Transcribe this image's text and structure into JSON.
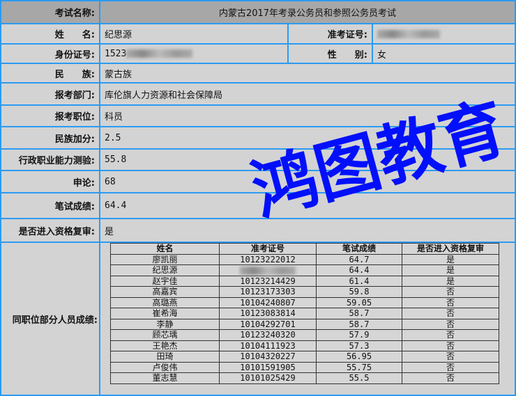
{
  "exam": {
    "label": "考试名称:",
    "value": "内蒙古2017年考录公务员和参照公务员考试"
  },
  "name": {
    "label": "姓　　名:",
    "value": "纪思源"
  },
  "ticket": {
    "label": "准考证号:"
  },
  "id": {
    "label": "身份证号:",
    "value_prefix": "1523"
  },
  "gender": {
    "label": "性　　别:",
    "value": "女"
  },
  "ethnicity": {
    "label": "民　　族:",
    "value": "蒙古族"
  },
  "department": {
    "label": "报考部门:",
    "value": "库伦旗人力资源和社会保障局"
  },
  "position": {
    "label": "报考职位:",
    "value": "科员"
  },
  "ethnic_bonus": {
    "label": "民族加分:",
    "value": "2.5"
  },
  "aptitude": {
    "label": "行政职业能力测验:",
    "value": "55.8"
  },
  "essay": {
    "label": "申论:",
    "value": "68"
  },
  "written": {
    "label": "笔试成绩:",
    "value": "64.4"
  },
  "review": {
    "label": "是否进入资格复审:",
    "value": "是"
  },
  "peers": {
    "label": "同职位部分人员成绩:",
    "headers": [
      "姓名",
      "准考证号",
      "笔试成绩",
      "是否进入资格复审"
    ],
    "rows": [
      [
        "廖凯丽",
        "10123222012",
        "64.7",
        "是"
      ],
      [
        "纪思源",
        "",
        "64.4",
        "是"
      ],
      [
        "赵宇佳",
        "10123214429",
        "61.4",
        "是"
      ],
      [
        "高嘉宾",
        "10123173303",
        "59.8",
        "否"
      ],
      [
        "高璐燕",
        "10104240807",
        "59.05",
        "否"
      ],
      [
        "崔希海",
        "10123083814",
        "58.7",
        "否"
      ],
      [
        "李静",
        "10104292701",
        "58.7",
        "否"
      ],
      [
        "顾芯瑀",
        "10123240320",
        "57.9",
        "否"
      ],
      [
        "王艳杰",
        "10104111923",
        "57.3",
        "否"
      ],
      [
        "田琦",
        "10104320227",
        "56.95",
        "否"
      ],
      [
        "卢俊伟",
        "10101591905",
        "55.75",
        "否"
      ],
      [
        "董志慧",
        "10101025429",
        "55.5",
        "否"
      ]
    ]
  },
  "watermark": {
    "text": "鸿图教育",
    "color": "#0010ff"
  }
}
